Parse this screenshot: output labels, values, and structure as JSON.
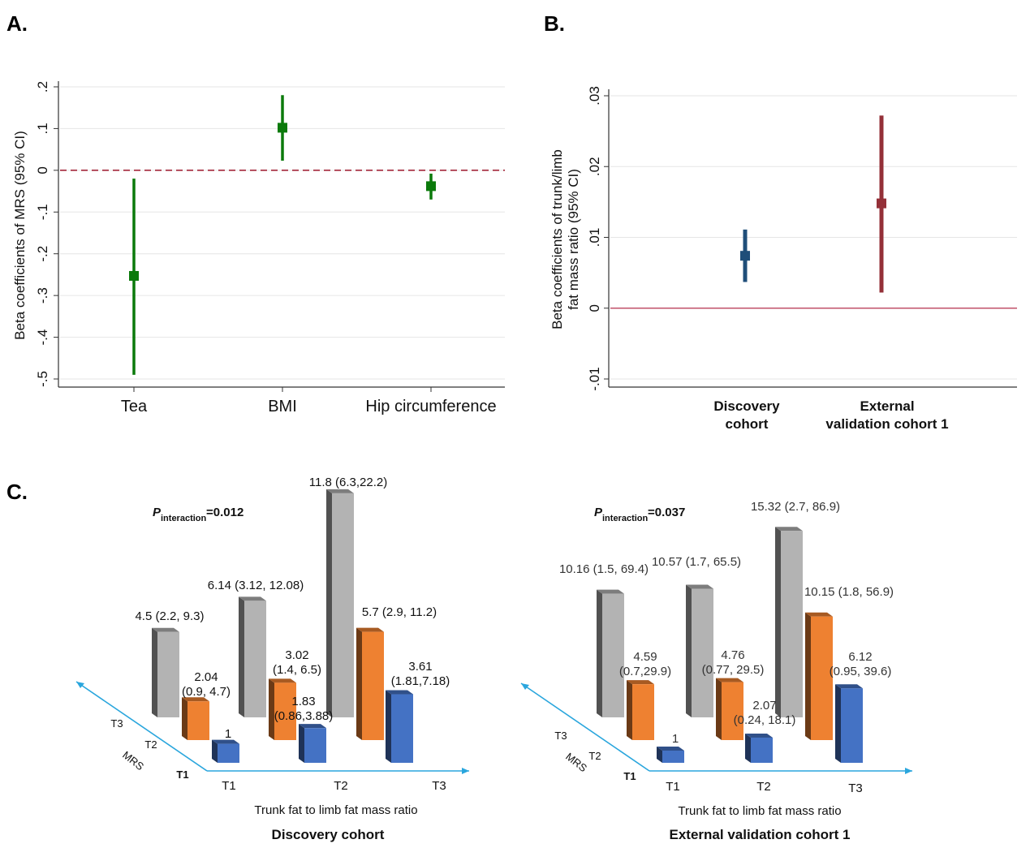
{
  "panels": {
    "a_label": "A.",
    "b_label": "B.",
    "c_label": "C."
  },
  "chart_data": [
    {
      "id": "A",
      "type": "scatter",
      "ylabel": "Beta coefficients of MRS (95% CI)",
      "yticks": [
        ".2",
        ".1",
        "0",
        "-.1",
        "-.2",
        "-.3",
        "-.4",
        "-.5"
      ],
      "ylim": [
        -0.5,
        0.2
      ],
      "reference_line": 0,
      "categories": [
        "Tea",
        "BMI",
        "Hip circumference"
      ],
      "estimates": [
        -0.253,
        0.102,
        -0.038
      ],
      "ci_lower": [
        -0.49,
        0.023,
        -0.07
      ],
      "ci_upper": [
        -0.02,
        0.18,
        -0.008
      ],
      "color": "#0b7a0b",
      "refline_color": "#a3263a"
    },
    {
      "id": "B",
      "type": "scatter",
      "ylabel_line1": "Beta coefficients of trunk/limb",
      "ylabel_line2": "fat mass ratio  (95% CI)",
      "yticks": [
        ".03",
        ".02",
        ".01",
        "0",
        "-.01"
      ],
      "ylim": [
        -0.01,
        0.03
      ],
      "reference_line": 0,
      "categories": [
        {
          "line1": "Discovery",
          "line2": "cohort"
        },
        {
          "line1": "External",
          "line2": "validation cohort 1"
        }
      ],
      "estimates": [
        0.0074,
        0.0148
      ],
      "ci_lower": [
        0.0037,
        0.0022
      ],
      "ci_upper": [
        0.0111,
        0.0272
      ],
      "colors": [
        "#1f4e79",
        "#943038"
      ],
      "refline_color": "#c0506a"
    },
    {
      "id": "C1",
      "type": "bar",
      "title": "Discovery cohort",
      "xlabel": "Trunk fat to limb fat mass ratio",
      "ylabel": "MRS",
      "x_categories": [
        "T1",
        "T2",
        "T3"
      ],
      "depth_categories": [
        "T1",
        "T2",
        "T3"
      ],
      "p_interaction_label": "P",
      "p_interaction_sub": "interaction",
      "p_interaction_value": "=0.012",
      "series": [
        {
          "name": "T3",
          "values": [
            4.5,
            6.14,
            11.8
          ],
          "labels": [
            [
              "4.5 (2.2, 9.3)"
            ],
            [
              "6.14 (3.12, 12.08)"
            ],
            [
              "11.8 (6.3,22.2)"
            ]
          ]
        },
        {
          "name": "T2",
          "values": [
            2.04,
            3.02,
            5.7
          ],
          "labels": [
            [
              "2.04",
              "(0.9, 4.7)"
            ],
            [
              "3.02",
              "(1.4, 6.5)"
            ],
            [
              "5.7 (2.9, 11.2)"
            ]
          ]
        },
        {
          "name": "T1",
          "values": [
            1,
            1.83,
            3.61
          ],
          "labels": [
            [
              "1"
            ],
            [
              "1.83",
              "(0.86,3.88)"
            ],
            [
              "3.61",
              "(1.81,7.18)"
            ]
          ]
        }
      ]
    },
    {
      "id": "C2",
      "type": "bar",
      "title": "External validation cohort 1",
      "xlabel": "Trunk fat to limb fat mass ratio",
      "ylabel": "MRS",
      "x_categories": [
        "T1",
        "T2",
        "T3"
      ],
      "depth_categories": [
        "T1",
        "T2",
        "T3"
      ],
      "p_interaction_label": "P",
      "p_interaction_sub": "interaction",
      "p_interaction_value": "=0.037",
      "series": [
        {
          "name": "T3",
          "values": [
            10.16,
            10.57,
            15.32
          ],
          "labels": [
            [
              "10.16 (1.5, 69.4)"
            ],
            [
              "10.57 (1.7, 65.5)"
            ],
            [
              "15.32 (2.7, 86.9)"
            ]
          ]
        },
        {
          "name": "T2",
          "values": [
            4.59,
            4.76,
            10.15
          ],
          "labels": [
            [
              "4.59",
              "(0.7,29.9)"
            ],
            [
              "4.76",
              "(0.77, 29.5)"
            ],
            [
              "10.15 (1.8, 56.9)"
            ]
          ]
        },
        {
          "name": "T1",
          "values": [
            1,
            2.07,
            6.12
          ],
          "labels": [
            [
              "1"
            ],
            [
              "2.07",
              "(0.24, 18.1)"
            ],
            [
              "6.12",
              "(0.95, 39.6)"
            ]
          ]
        }
      ]
    }
  ],
  "colors": {
    "grey": "#b3b3b3",
    "orange": "#ee8131",
    "blue": "#4472c4",
    "arrow": "#2aa6dd"
  }
}
